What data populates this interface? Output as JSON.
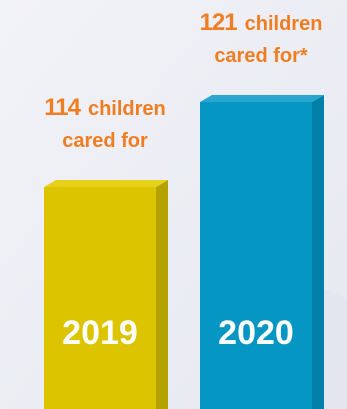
{
  "chart_data": {
    "type": "bar",
    "categories": [
      "2019",
      "2020"
    ],
    "values": [
      114,
      121
    ],
    "annotations": [
      {
        "number": "114",
        "lines": [
          "children",
          "cared for"
        ]
      },
      {
        "number": "121",
        "lines": [
          "children",
          "cared for*"
        ]
      }
    ],
    "colors": {
      "bars": [
        "#dcc400",
        "#0596c4"
      ],
      "bar_sides": [
        "#b4a200",
        "#0380a8"
      ],
      "bar_tops": [
        "#e6d21a",
        "#2aa5cf"
      ],
      "label_text": "#f07d22",
      "year_text": "#ffffff",
      "background": "#eceef5"
    },
    "ylim": [
      0,
      150
    ]
  }
}
